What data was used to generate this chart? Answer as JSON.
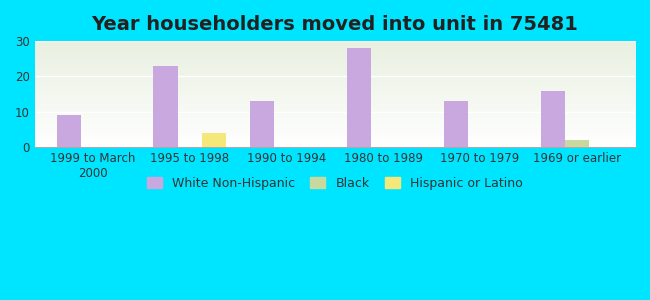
{
  "title": "Year householders moved into unit in 75481",
  "categories": [
    "1999 to March\n2000",
    "1995 to 1998",
    "1990 to 1994",
    "1980 to 1989",
    "1970 to 1979",
    "1969 or earlier"
  ],
  "white_non_hispanic": [
    9,
    23,
    13,
    28,
    13,
    16
  ],
  "black": [
    0,
    0,
    0,
    0,
    0,
    2
  ],
  "hispanic_or_latino": [
    0,
    4,
    0,
    0,
    0,
    0
  ],
  "white_color": "#c9a8e0",
  "black_color": "#c8d9a0",
  "hispanic_color": "#f5e87a",
  "bg_outer": "#00e5ff",
  "bg_chart_top": "#e8f0e0",
  "bg_chart_bottom": "#ffffff",
  "ylim": [
    0,
    30
  ],
  "yticks": [
    0,
    10,
    20,
    30
  ],
  "bar_width": 0.25,
  "title_fontsize": 14,
  "tick_fontsize": 8.5,
  "legend_fontsize": 9
}
